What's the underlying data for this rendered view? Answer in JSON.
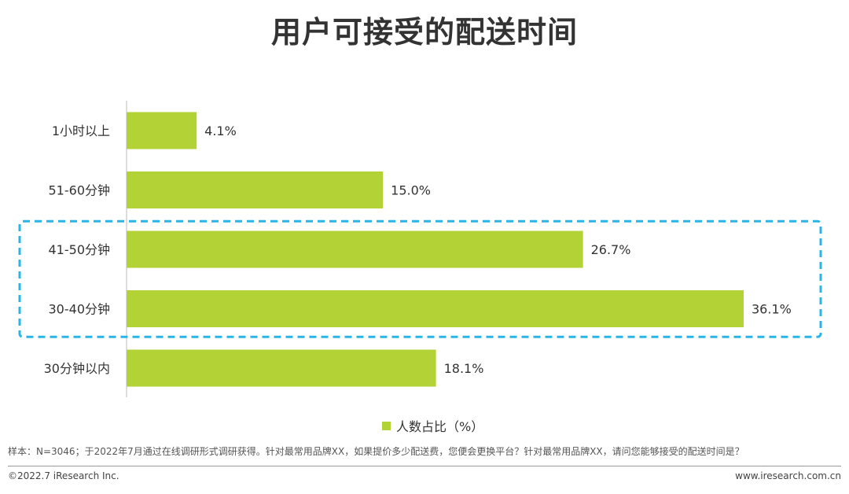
{
  "chart_data": {
    "type": "bar",
    "orientation": "horizontal",
    "title": "用户可接受的配送时间",
    "categories": [
      "1小时以上",
      "51-60分钟",
      "41-50分钟",
      "30-40分钟",
      "30分钟以内"
    ],
    "series": [
      {
        "name": "人数占比（%）",
        "values": [
          4.1,
          15.0,
          26.7,
          36.1,
          18.1
        ]
      }
    ],
    "value_labels": [
      "4.1%",
      "15.0%",
      "26.7%",
      "36.1%",
      "18.1%"
    ],
    "xlim": [
      0,
      40
    ],
    "grid": false,
    "legend_position": "bottom",
    "highlighted_categories": [
      "41-50分钟",
      "30-40分钟"
    ],
    "bar_color": "#b2d235",
    "highlight_color": "#29b6e6"
  },
  "footer": {
    "note": "样本：N=3046；于2022年7月通过在线调研形式调研获得。针对最常用品牌XX，如果提价多少配送费，您便会更换平台？针对最常用品牌XX，请问您能够接受的配送时间是？",
    "copyright": "©2022.7 iResearch Inc.",
    "website": "www.iresearch.com.cn"
  }
}
